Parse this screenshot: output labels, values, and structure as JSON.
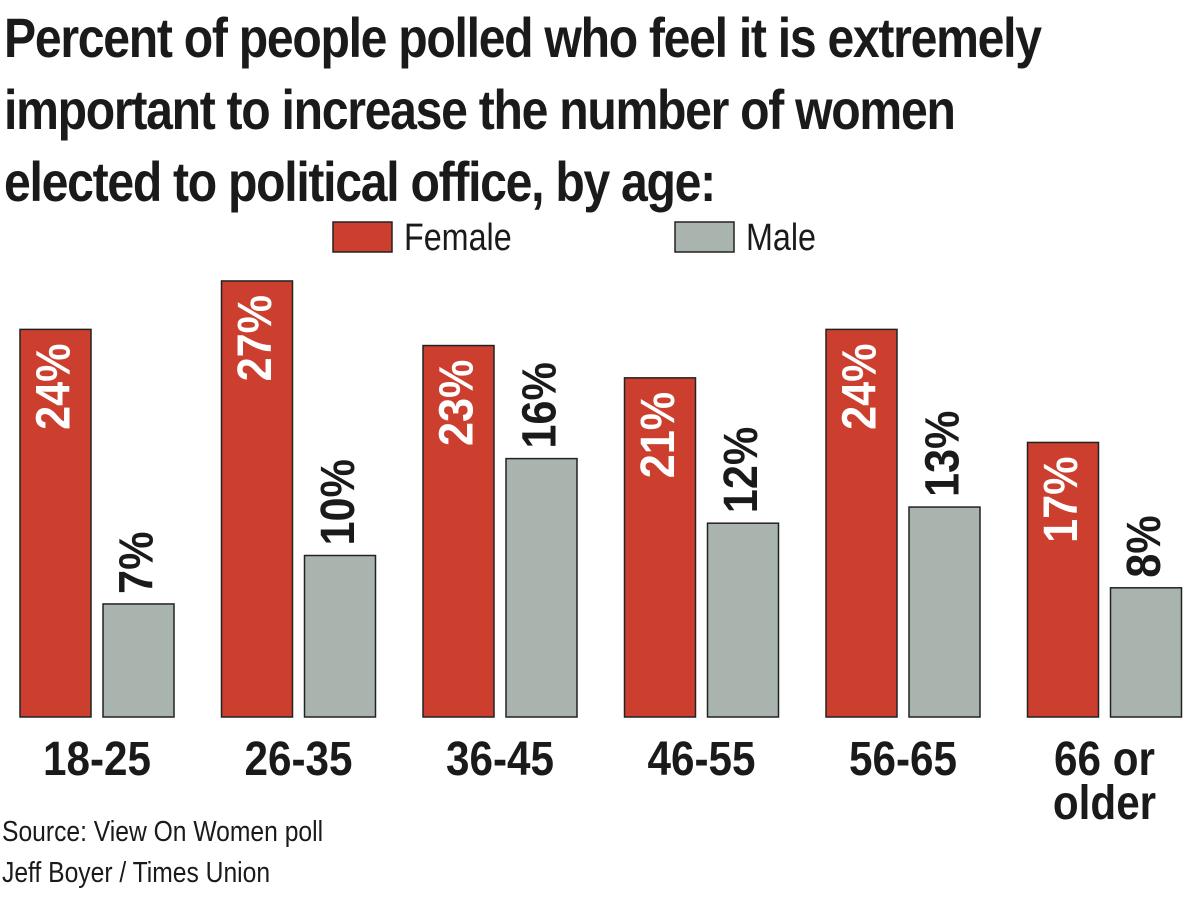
{
  "title_lines": [
    "Percent of people polled who feel it is extremely",
    "important to increase the number of women",
    "elected to political office, by age:"
  ],
  "credits": {
    "source": "Source: View On Women poll",
    "byline": "Jeff Boyer / Times Union"
  },
  "colors": {
    "female": "#cc3e2e",
    "male": "#aab4ae",
    "text": "#1a1a1a",
    "bar_outline": "#222222"
  },
  "chart_data": {
    "type": "bar",
    "title": "Percent of people polled who feel it is extremely important to increase the number of women elected to political office, by age:",
    "categories": [
      [
        "18-25"
      ],
      [
        "26-35"
      ],
      [
        "36-45"
      ],
      [
        "46-55"
      ],
      [
        "56-65"
      ],
      [
        "66 or",
        "older"
      ]
    ],
    "series": [
      {
        "name": "Female",
        "values": [
          24,
          27,
          23,
          21,
          24,
          17
        ],
        "labels": [
          "24%",
          "27%",
          "23%",
          "21%",
          "24%",
          "17%"
        ]
      },
      {
        "name": "Male",
        "values": [
          7,
          10,
          16,
          12,
          13,
          8
        ],
        "labels": [
          "7%",
          "10%",
          "16%",
          "12%",
          "13%",
          "8%"
        ]
      }
    ],
    "legend": "top-center",
    "grid": false,
    "ylim": [
      0,
      27
    ]
  }
}
